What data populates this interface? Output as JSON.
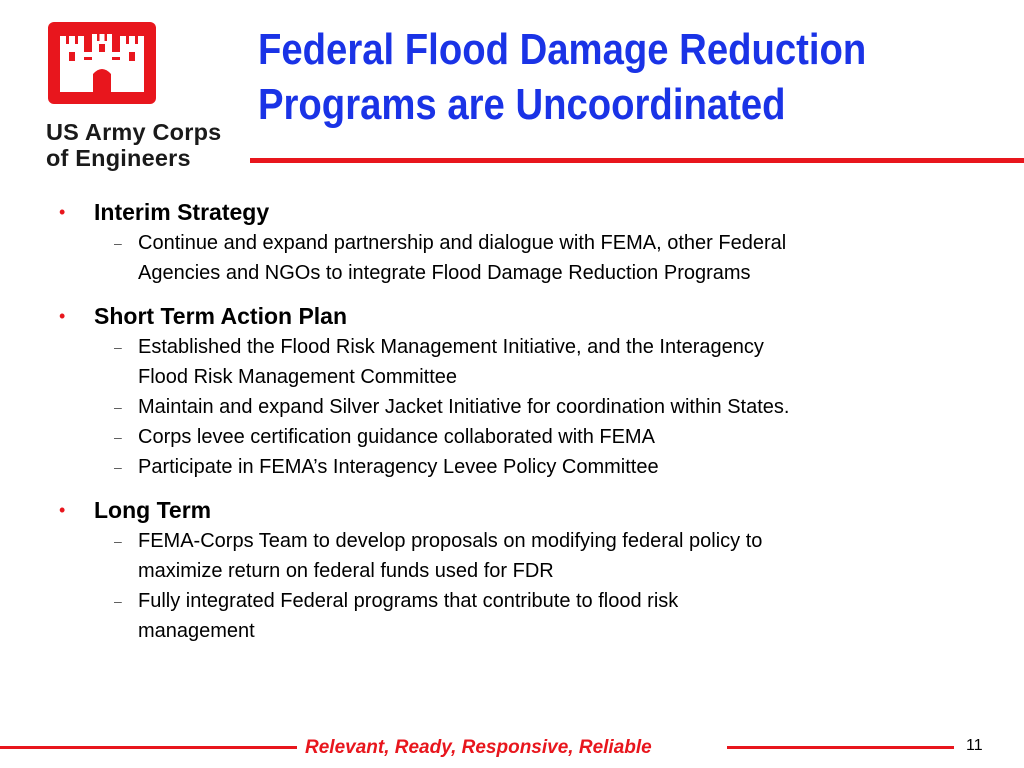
{
  "logo": {
    "line1": "US Army Corps",
    "line2": "of Engineers",
    "icon": "castle-icon",
    "color": "#e8161d"
  },
  "title": {
    "line1": "Federal Flood Damage Reduction",
    "line2": "Programs are Uncoordinated",
    "color": "#1a33e6"
  },
  "sections": [
    {
      "heading": "Interim Strategy",
      "items": [
        {
          "line1": "Continue and expand partnership and dialogue with FEMA, other Federal",
          "line2": "Agencies and NGOs to integrate Flood Damage Reduction Programs"
        }
      ]
    },
    {
      "heading": "Short Term Action Plan",
      "items": [
        {
          "line1": "Established the Flood Risk Management Initiative, and the Interagency",
          "line2": "Flood Risk Management Committee"
        },
        {
          "line1": "Maintain and expand Silver Jacket Initiative for coordination within States."
        },
        {
          "line1": "Corps levee certification guidance collaborated with FEMA"
        },
        {
          "line1": "Participate in FEMA’s Interagency Levee Policy Committee"
        }
      ]
    },
    {
      "heading": "Long Term",
      "items": [
        {
          "line1": "FEMA-Corps Team to develop proposals on modifying federal policy to",
          "line2": "maximize return on federal funds used for FDR"
        },
        {
          "line1": "Fully integrated Federal programs that contribute to flood risk",
          "line2": "management"
        }
      ]
    }
  ],
  "bullet_symbol": "•",
  "sub_symbol": "–",
  "footer": {
    "tagline": "Relevant, Ready, Responsive, Reliable",
    "page_number": "11"
  }
}
